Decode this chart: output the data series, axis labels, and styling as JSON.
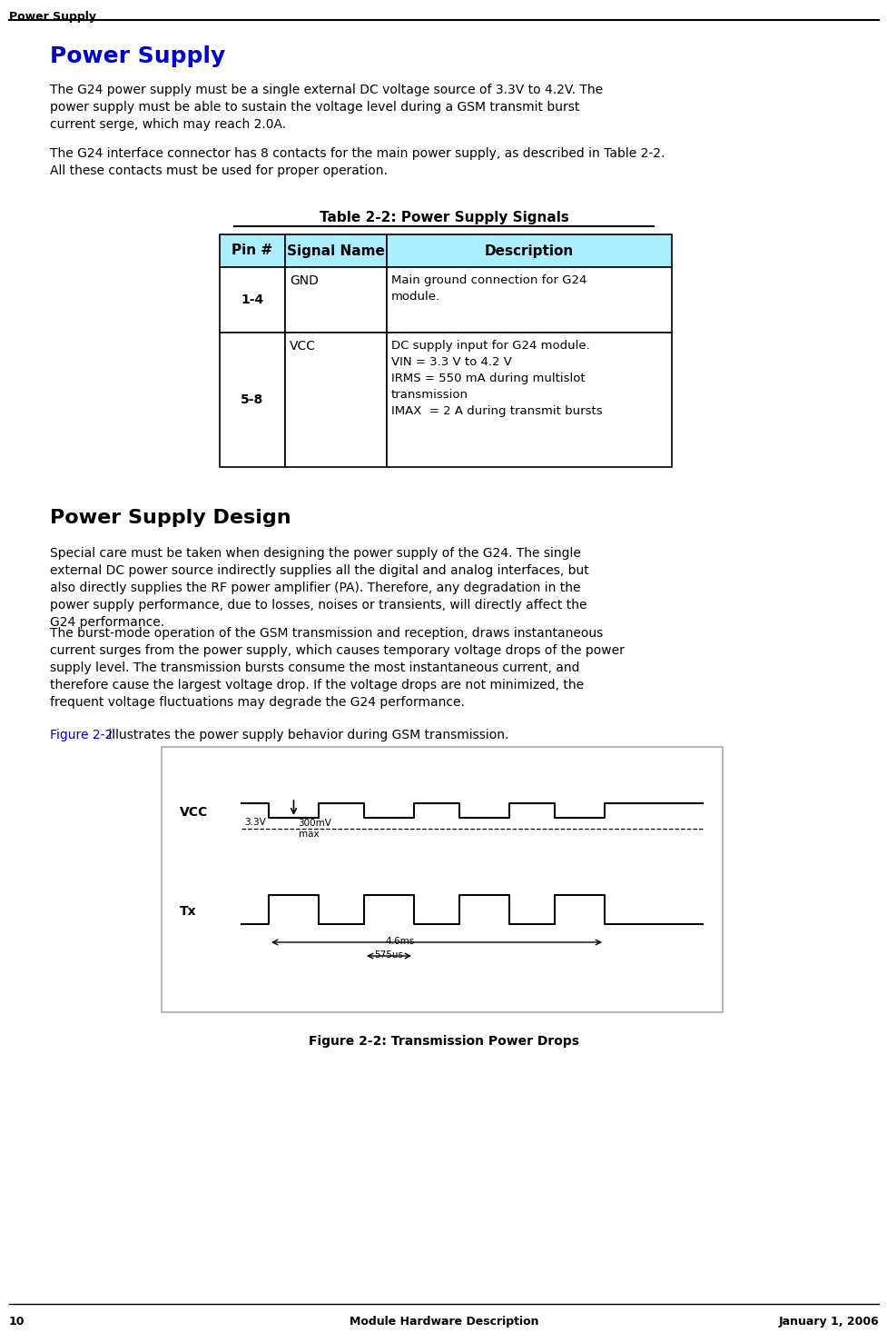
{
  "page_number": "10",
  "header_text": "Power Supply",
  "footer_center": "Module Hardware Description",
  "footer_right": "January 1, 2006",
  "section_title": "Power Supply",
  "section_title_color": "#0000CC",
  "para1": "The G24 power supply must be a single external DC voltage source of 3.3V to 4.2V. The power supply must be able to sustain the voltage level during a GSM transmit burst current serge, which may reach 2.0A.",
  "para2_line1": "The G24 interface connector has 8 contacts for the main power supply, as described in Table 2-2.",
  "para2_line2": "All these contacts must be used for proper operation.",
  "table_title": "Table 2-2: Power Supply Signals",
  "table_header_bg": "#AAEEFF",
  "table_col_headers": [
    "Pin #",
    "Signal Name",
    "Description"
  ],
  "table_rows": [
    [
      "1-4",
      "GND",
      "Main ground connection for G24\nmodule."
    ],
    [
      "5-8",
      "VCC",
      "DC supply input for G24 module.\nVIN = 3.3 V to 4.2 V\nIRMS = 550 mA during multislot\ntransmission\nIMAX  = 2 A during transmit bursts"
    ]
  ],
  "section2_title": "Power Supply Design",
  "para3": "Special care must be taken when designing the power supply of the G24. The single external DC power source indirectly supplies all the digital and analog interfaces, but also directly supplies the RF power amplifier (PA). Therefore, any degradation in the power supply performance, due to losses, noises or transients, will directly affect the G24 performance.",
  "para4": "The burst-mode operation of the GSM transmission and reception, draws instantaneous current surges from the power supply, which causes temporary voltage drops of the power supply level. The transmission bursts consume the most instantaneous current, and therefore cause the largest voltage drop. If the voltage drops are not minimized, the frequent voltage fluctuations may degrade the G24 performance.",
  "para5_link": "Figure 2-2",
  "para5_end": " illustrates the power supply behavior during GSM transmission.",
  "figure_caption": "Figure 2-2: Transmission Power Drops",
  "background_color": "#FFFFFF",
  "text_color": "#000000",
  "link_color": "#0000CC"
}
